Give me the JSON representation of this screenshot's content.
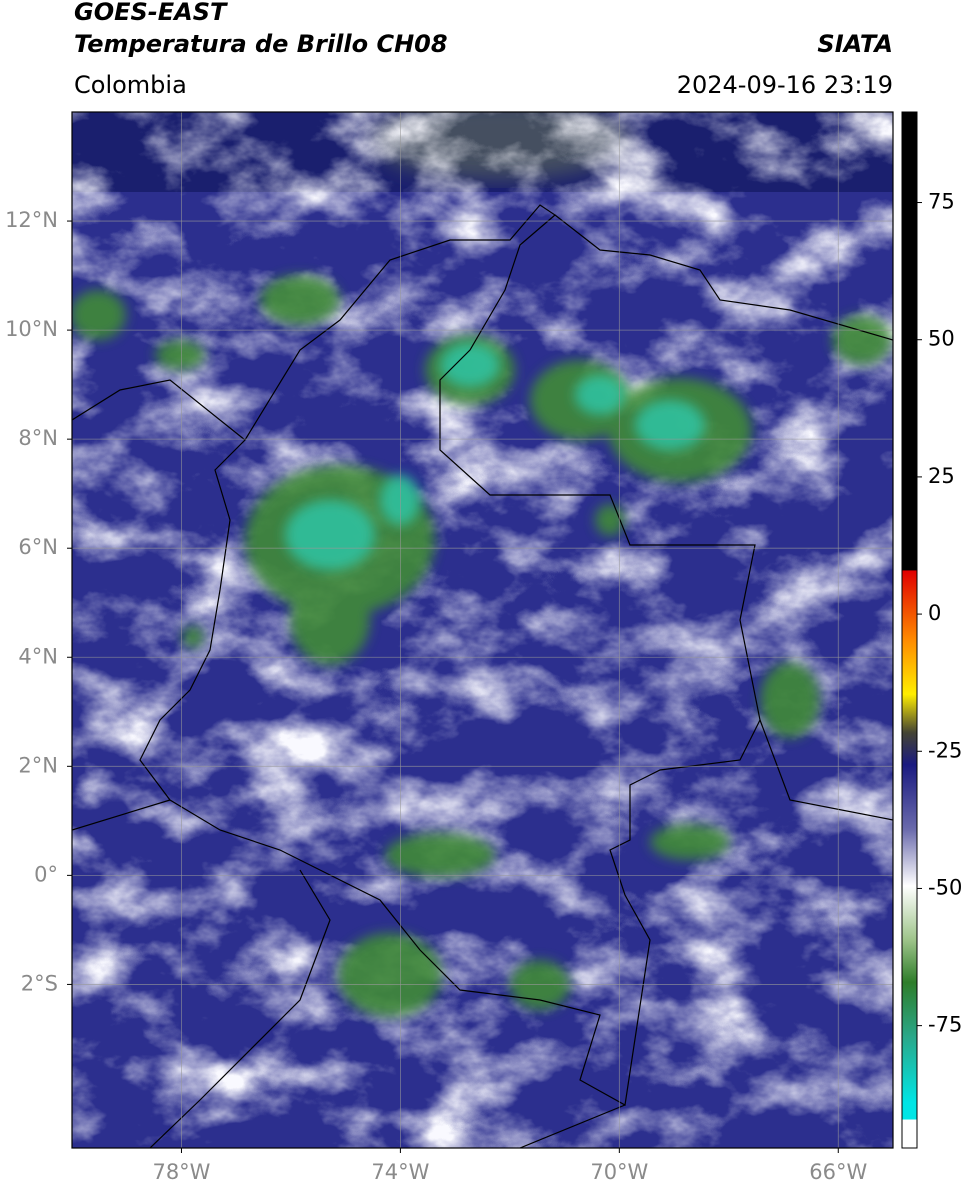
{
  "header": {
    "title": "GOES-EAST",
    "subtitle": "Temperatura de Brillo CH08",
    "source": "SIATA",
    "region": "Colombia",
    "timestamp": "2024-09-16 23:19"
  },
  "map": {
    "xlim": [
      -80,
      -65
    ],
    "ylim": [
      -5,
      14
    ],
    "xticks": [
      {
        "value": -78,
        "label": "78°W"
      },
      {
        "value": -74,
        "label": "74°W"
      },
      {
        "value": -70,
        "label": "70°W"
      },
      {
        "value": -66,
        "label": "66°W"
      }
    ],
    "yticks": [
      {
        "value": 12,
        "label": "12°N"
      },
      {
        "value": 10,
        "label": "10°N"
      },
      {
        "value": 8,
        "label": "8°N"
      },
      {
        "value": 6,
        "label": "6°N"
      },
      {
        "value": 4,
        "label": "4°N"
      },
      {
        "value": 2,
        "label": "2°N"
      },
      {
        "value": 0,
        "label": "0°"
      },
      {
        "value": -2,
        "label": "2°S"
      }
    ],
    "grid": true
  },
  "colorbar": {
    "lim": [
      -97.3,
      91.5
    ],
    "ticks": [
      75,
      50,
      25,
      0,
      -25,
      -50,
      -75
    ]
  }
}
